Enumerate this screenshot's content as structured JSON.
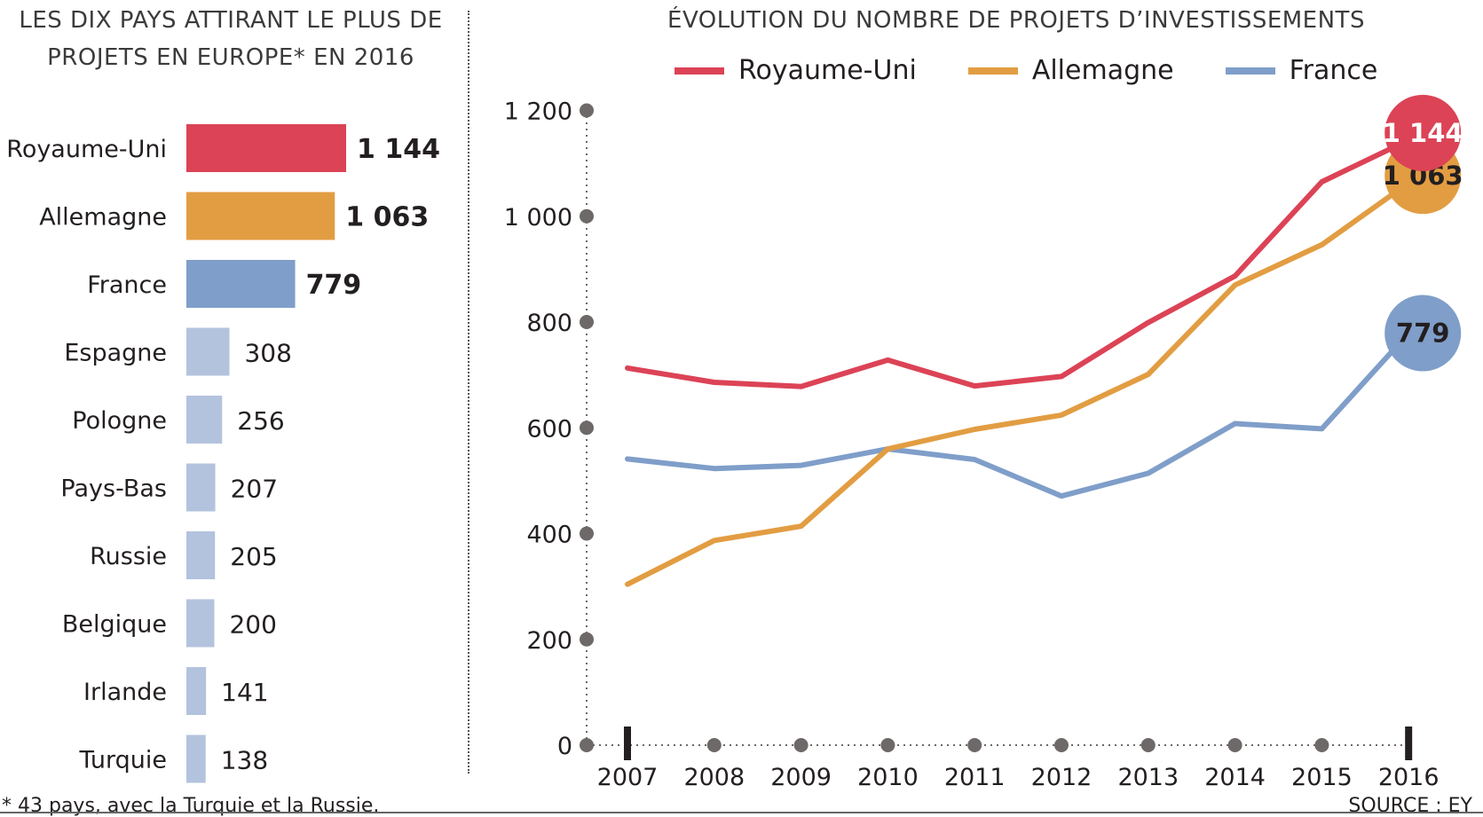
{
  "left_title": "LES DIX PAYS ATTIRANT LE PLUS DE PROJETS EN EUROPE* EN 2016",
  "right_title": "ÉVOLUTION DU NOMBRE DE PROJETS D’INVESTISSEMENTS",
  "footnote": "* 43 pays, avec la Turquie et la Russie.",
  "source": "SOURCE : EY",
  "colors": {
    "royaume_uni": "#dc4356",
    "allemagne": "#e29d42",
    "france": "#7f9ec9",
    "others": "#b3c3dd",
    "grid_dot": "#6d6968"
  },
  "chart_data": [
    {
      "type": "bar",
      "orientation": "horizontal",
      "title": "LES DIX PAYS ATTIRANT LE PLUS DE PROJETS EN EUROPE* EN 2016",
      "categories": [
        "Royaume-Uni",
        "Allemagne",
        "France",
        "Espagne",
        "Pologne",
        "Pays-Bas",
        "Russie",
        "Belgique",
        "Irlande",
        "Turquie"
      ],
      "values": [
        1144,
        1063,
        779,
        308,
        256,
        207,
        205,
        200,
        141,
        138
      ],
      "value_labels": [
        "1 144",
        "1 063",
        "779",
        "308",
        "256",
        "207",
        "205",
        "200",
        "141",
        "138"
      ]
    },
    {
      "type": "line",
      "title": "ÉVOLUTION DU NOMBRE DE PROJETS D’INVESTISSEMENTS",
      "x": [
        "2007",
        "2008",
        "2009",
        "2010",
        "2011",
        "2012",
        "2013",
        "2014",
        "2015",
        "2016"
      ],
      "ylim": [
        0,
        1200
      ],
      "yticks": [
        0,
        200,
        400,
        600,
        800,
        1000,
        1200
      ],
      "ytick_labels": [
        "0",
        "200",
        "400",
        "600",
        "800",
        "1 000",
        "1 200"
      ],
      "legend_position": "top",
      "series": [
        {
          "name": "Royaume-Uni",
          "values": [
            713,
            686,
            678,
            728,
            679,
            697,
            799,
            887,
            1065,
            1144
          ],
          "end_label": "1 144"
        },
        {
          "name": "Allemagne",
          "values": [
            304,
            387,
            414,
            560,
            597,
            624,
            701,
            870,
            946,
            1063
          ],
          "end_label": "1 063"
        },
        {
          "name": "France",
          "values": [
            541,
            523,
            529,
            560,
            540,
            471,
            514,
            608,
            598,
            779
          ],
          "end_label": "779"
        }
      ]
    }
  ]
}
